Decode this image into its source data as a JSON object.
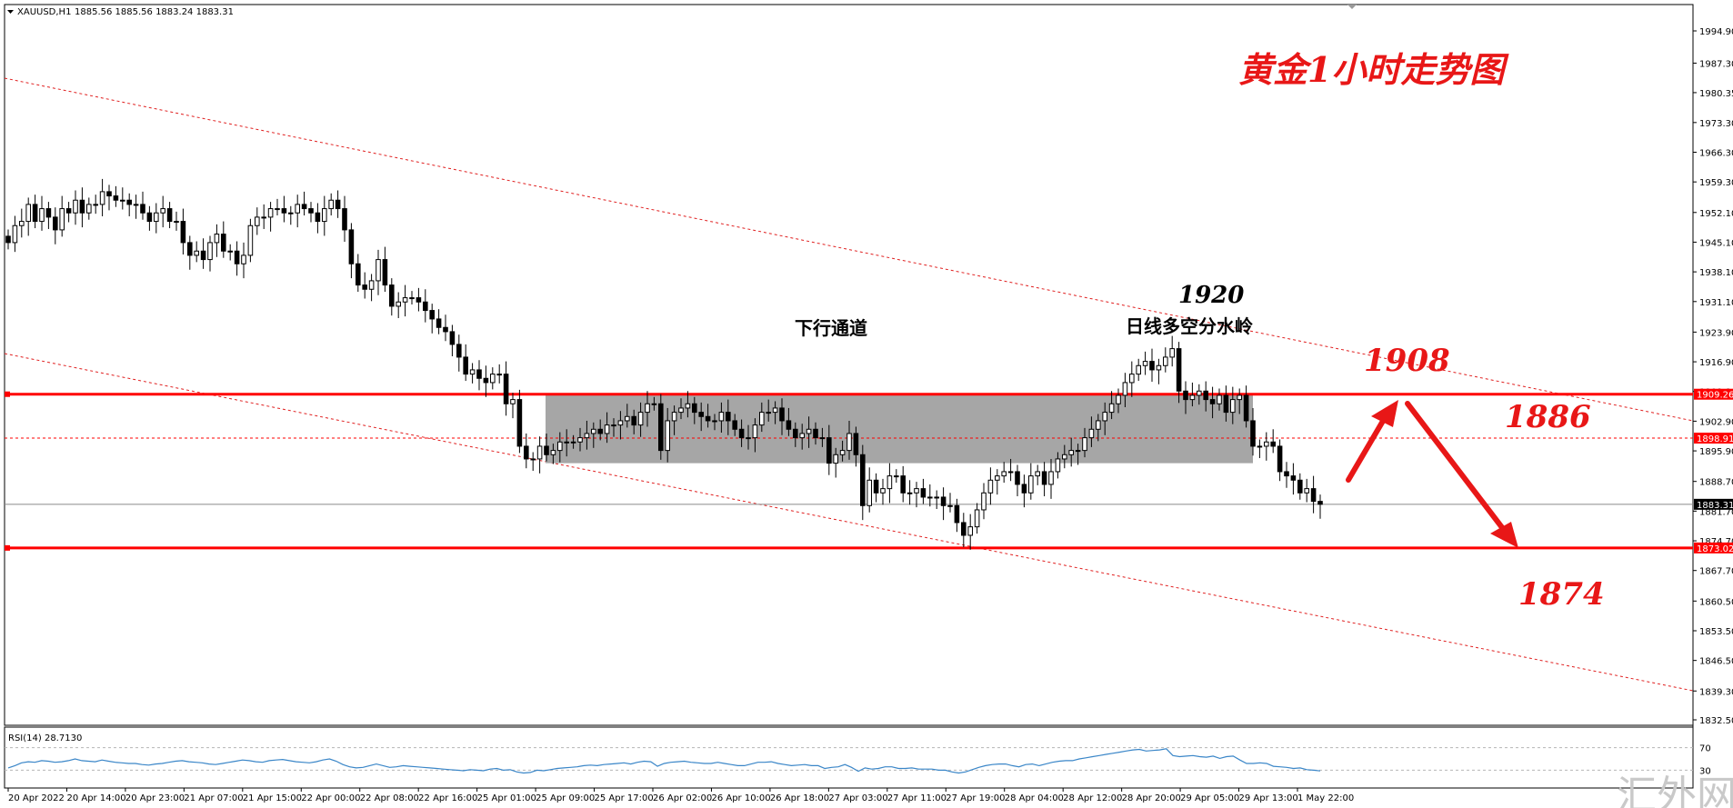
{
  "chart_data": [
    {
      "type": "candlestick",
      "symbol_header": "XAUUSD,H1",
      "ohlc_header": "1885.56 1885.56 1883.24 1883.31",
      "ylim": [
        1832.5,
        2001
      ],
      "y_ticks": [
        "1994.90",
        "1987.30",
        "1980.35",
        "1973.30",
        "1966.30",
        "1959.30",
        "1952.10",
        "1945.10",
        "1938.10",
        "1931.10",
        "1923.90",
        "1916.90",
        "1909.90",
        "1902.90",
        "1895.90",
        "1888.70",
        "1881.70",
        "1874.70",
        "1867.70",
        "1860.50",
        "1853.50",
        "1846.50",
        "1839.30",
        "1832.50"
      ],
      "x_ticks": [
        "20 Apr 2022",
        "20 Apr 14:00",
        "20 Apr 23:00",
        "21 Apr 07:00",
        "21 Apr 15:00",
        "22 Apr 00:00",
        "22 Apr 08:00",
        "22 Apr 16:00",
        "25 Apr 01:00",
        "25 Apr 09:00",
        "25 Apr 17:00",
        "26 Apr 02:00",
        "26 Apr 10:00",
        "26 Apr 18:00",
        "27 Apr 03:00",
        "27 Apr 11:00",
        "27 Apr 19:00",
        "28 Apr 04:00",
        "28 Apr 12:00",
        "28 Apr 20:00",
        "29 Apr 05:00",
        "29 Apr 13:00",
        "1 May 22:00"
      ],
      "closes": [
        1945,
        1949,
        1950,
        1954,
        1950,
        1953,
        1951,
        1948,
        1953,
        1952,
        1955,
        1952,
        1954,
        1954,
        1957,
        1956,
        1955,
        1955,
        1954,
        1954,
        1952,
        1950,
        1952,
        1953,
        1950,
        1950,
        1945,
        1942,
        1943,
        1941,
        1945,
        1947,
        1943,
        1943,
        1940,
        1942,
        1949,
        1951,
        1951,
        1953,
        1953,
        1952,
        1952,
        1954,
        1953,
        1952,
        1950,
        1953,
        1955,
        1953,
        1948,
        1940,
        1935,
        1934,
        1936,
        1941,
        1935,
        1930,
        1931,
        1932,
        1932,
        1931,
        1929,
        1927,
        1925,
        1924,
        1921,
        1918,
        1914,
        1915,
        1913,
        1912,
        1914,
        1914,
        1907,
        1908,
        1897,
        1894,
        1894,
        1897,
        1895,
        1896,
        1898,
        1898,
        1898,
        1899,
        1900,
        1901,
        1900,
        1902,
        1902,
        1903,
        1904,
        1902,
        1905,
        1907,
        1907,
        1896,
        1903,
        1905,
        1906,
        1907,
        1905,
        1904,
        1903,
        1903,
        1905,
        1903,
        1901,
        1899,
        1899,
        1902,
        1905,
        1905,
        1906,
        1903,
        1901,
        1899,
        1900,
        1901,
        1899,
        1899,
        1893,
        1895,
        1896,
        1900,
        1895,
        1883,
        1889,
        1886,
        1887,
        1890,
        1890,
        1886,
        1886,
        1887,
        1885,
        1885,
        1885,
        1883,
        1883,
        1879,
        1876,
        1878,
        1882,
        1886,
        1889,
        1890,
        1891,
        1891,
        1888,
        1886,
        1890,
        1891,
        1888,
        1891,
        1894,
        1895,
        1896,
        1896,
        1899,
        1901,
        1903,
        1905,
        1907,
        1909,
        1912,
        1914,
        1916,
        1917,
        1915,
        1916,
        1918,
        1920,
        1910,
        1908,
        1909,
        1910,
        1908,
        1907,
        1909,
        1905,
        1908,
        1909,
        1903,
        1897,
        1897,
        1898,
        1897,
        1891,
        1890,
        1889,
        1886,
        1887,
        1884,
        1883.31
      ],
      "levels": [
        {
          "price": 1909.26,
          "label": "1909.26",
          "color": "#ff0000"
        },
        {
          "price": 1898.91,
          "label": "1898.91",
          "color": "#ff0000"
        },
        {
          "price": 1883.31,
          "label": "1883.31",
          "color": "#000000"
        },
        {
          "price": 1873.02,
          "label": "1873.02",
          "color": "#ff0000"
        }
      ],
      "zone": {
        "from": 1893,
        "to": 1909.26,
        "color": "#a6a6a6"
      },
      "annotations": {
        "title_zh": "黄金1小时走势图",
        "channel_zh": "下行通道",
        "peak": "1920",
        "divide_zh": "日线多空分水岭",
        "t1908": "1908",
        "t1886": "1886",
        "t1874": "1874"
      },
      "grid": false,
      "legend": "none"
    },
    {
      "type": "line",
      "header": "RSI(14) 28.7130",
      "y_ticks": [
        "70",
        "30"
      ],
      "ylim": [
        0,
        100
      ],
      "values": [
        34,
        38,
        43,
        45,
        44,
        47,
        46,
        44,
        45,
        47,
        50,
        47,
        46,
        45,
        48,
        46,
        44,
        43,
        42,
        42,
        40,
        39,
        41,
        42,
        44,
        46,
        47,
        45,
        44,
        43,
        41,
        40,
        42,
        44,
        46,
        48,
        47,
        45,
        44,
        47,
        48,
        49,
        47,
        45,
        44,
        43,
        45,
        48,
        50,
        46,
        40,
        36,
        34,
        35,
        38,
        41,
        38,
        35,
        36,
        38,
        37,
        36,
        35,
        34,
        33,
        32,
        31,
        30,
        29,
        31,
        30,
        29,
        32,
        33,
        30,
        31,
        27,
        25,
        26,
        30,
        29,
        31,
        33,
        34,
        35,
        36,
        38,
        39,
        38,
        40,
        41,
        42,
        43,
        41,
        44,
        46,
        45,
        37,
        42,
        44,
        45,
        46,
        44,
        43,
        42,
        42,
        44,
        42,
        40,
        38,
        38,
        41,
        44,
        44,
        45,
        42,
        40,
        38,
        39,
        40,
        38,
        38,
        33,
        35,
        36,
        40,
        35,
        28,
        34,
        32,
        33,
        36,
        36,
        33,
        33,
        34,
        32,
        32,
        32,
        30,
        30,
        27,
        25,
        27,
        31,
        35,
        38,
        40,
        41,
        41,
        38,
        36,
        40,
        41,
        38,
        41,
        44,
        46,
        47,
        47,
        50,
        52,
        54,
        56,
        58,
        60,
        62,
        64,
        66,
        67,
        64,
        65,
        66,
        68,
        56,
        54,
        55,
        56,
        54,
        53,
        55,
        51,
        54,
        55,
        48,
        42,
        42,
        43,
        42,
        37,
        36,
        35,
        33,
        34,
        31,
        30,
        28.713
      ],
      "color": "#3a86c8"
    }
  ],
  "watermark": "汇外网"
}
